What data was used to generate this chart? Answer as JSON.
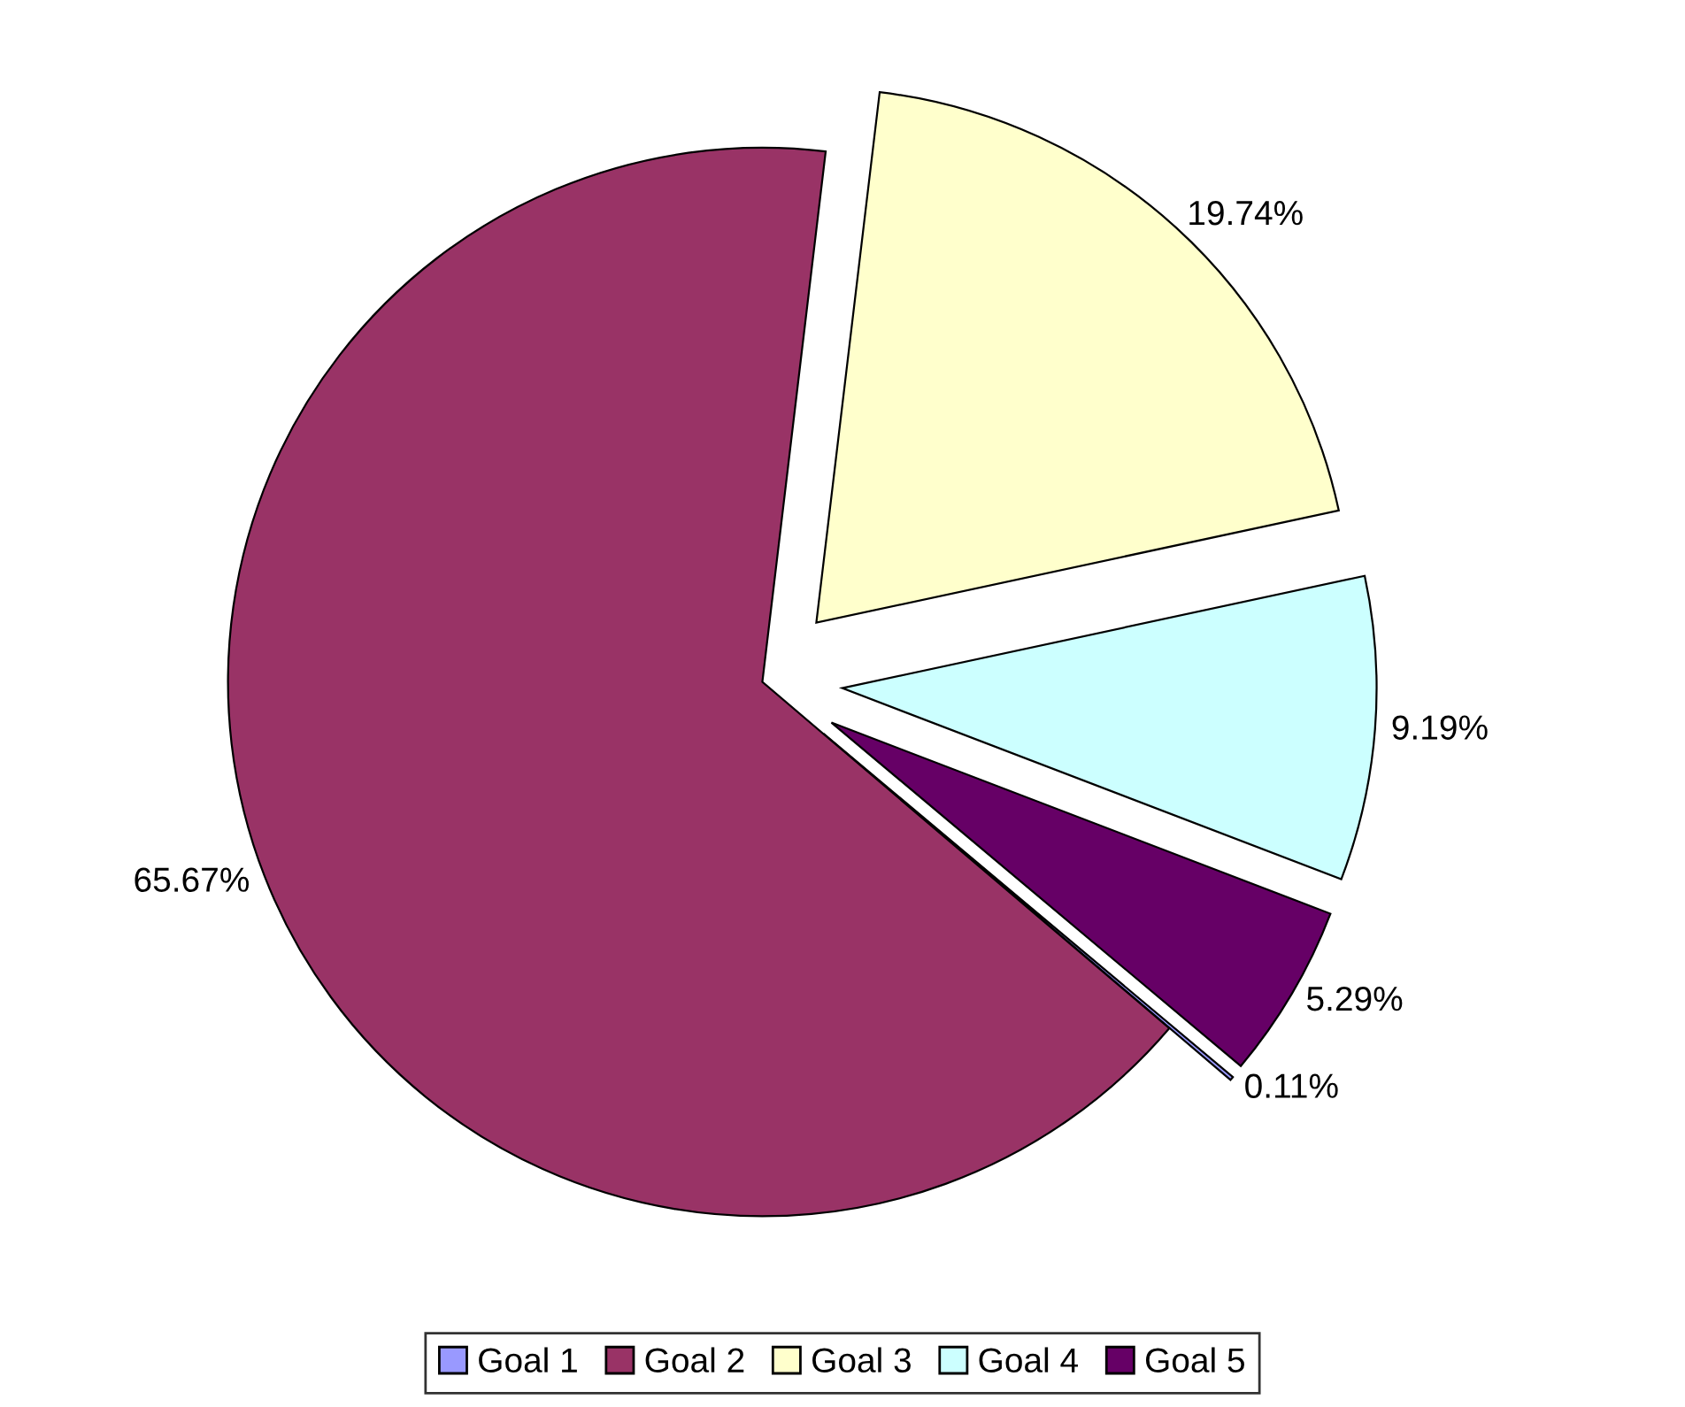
{
  "chart_data": {
    "type": "pie",
    "categories": [
      "Goal 1",
      "Goal 2",
      "Goal 3",
      "Goal 4",
      "Goal 5"
    ],
    "values": [
      0.11,
      65.67,
      19.74,
      9.19,
      5.29
    ],
    "value_labels": [
      "0.11%",
      "65.67%",
      "19.74%",
      "9.19%",
      "5.29%"
    ],
    "colors": [
      "#9999ff",
      "#993366",
      "#ffffcc",
      "#ccffff",
      "#660066"
    ],
    "legend": "bottom"
  }
}
